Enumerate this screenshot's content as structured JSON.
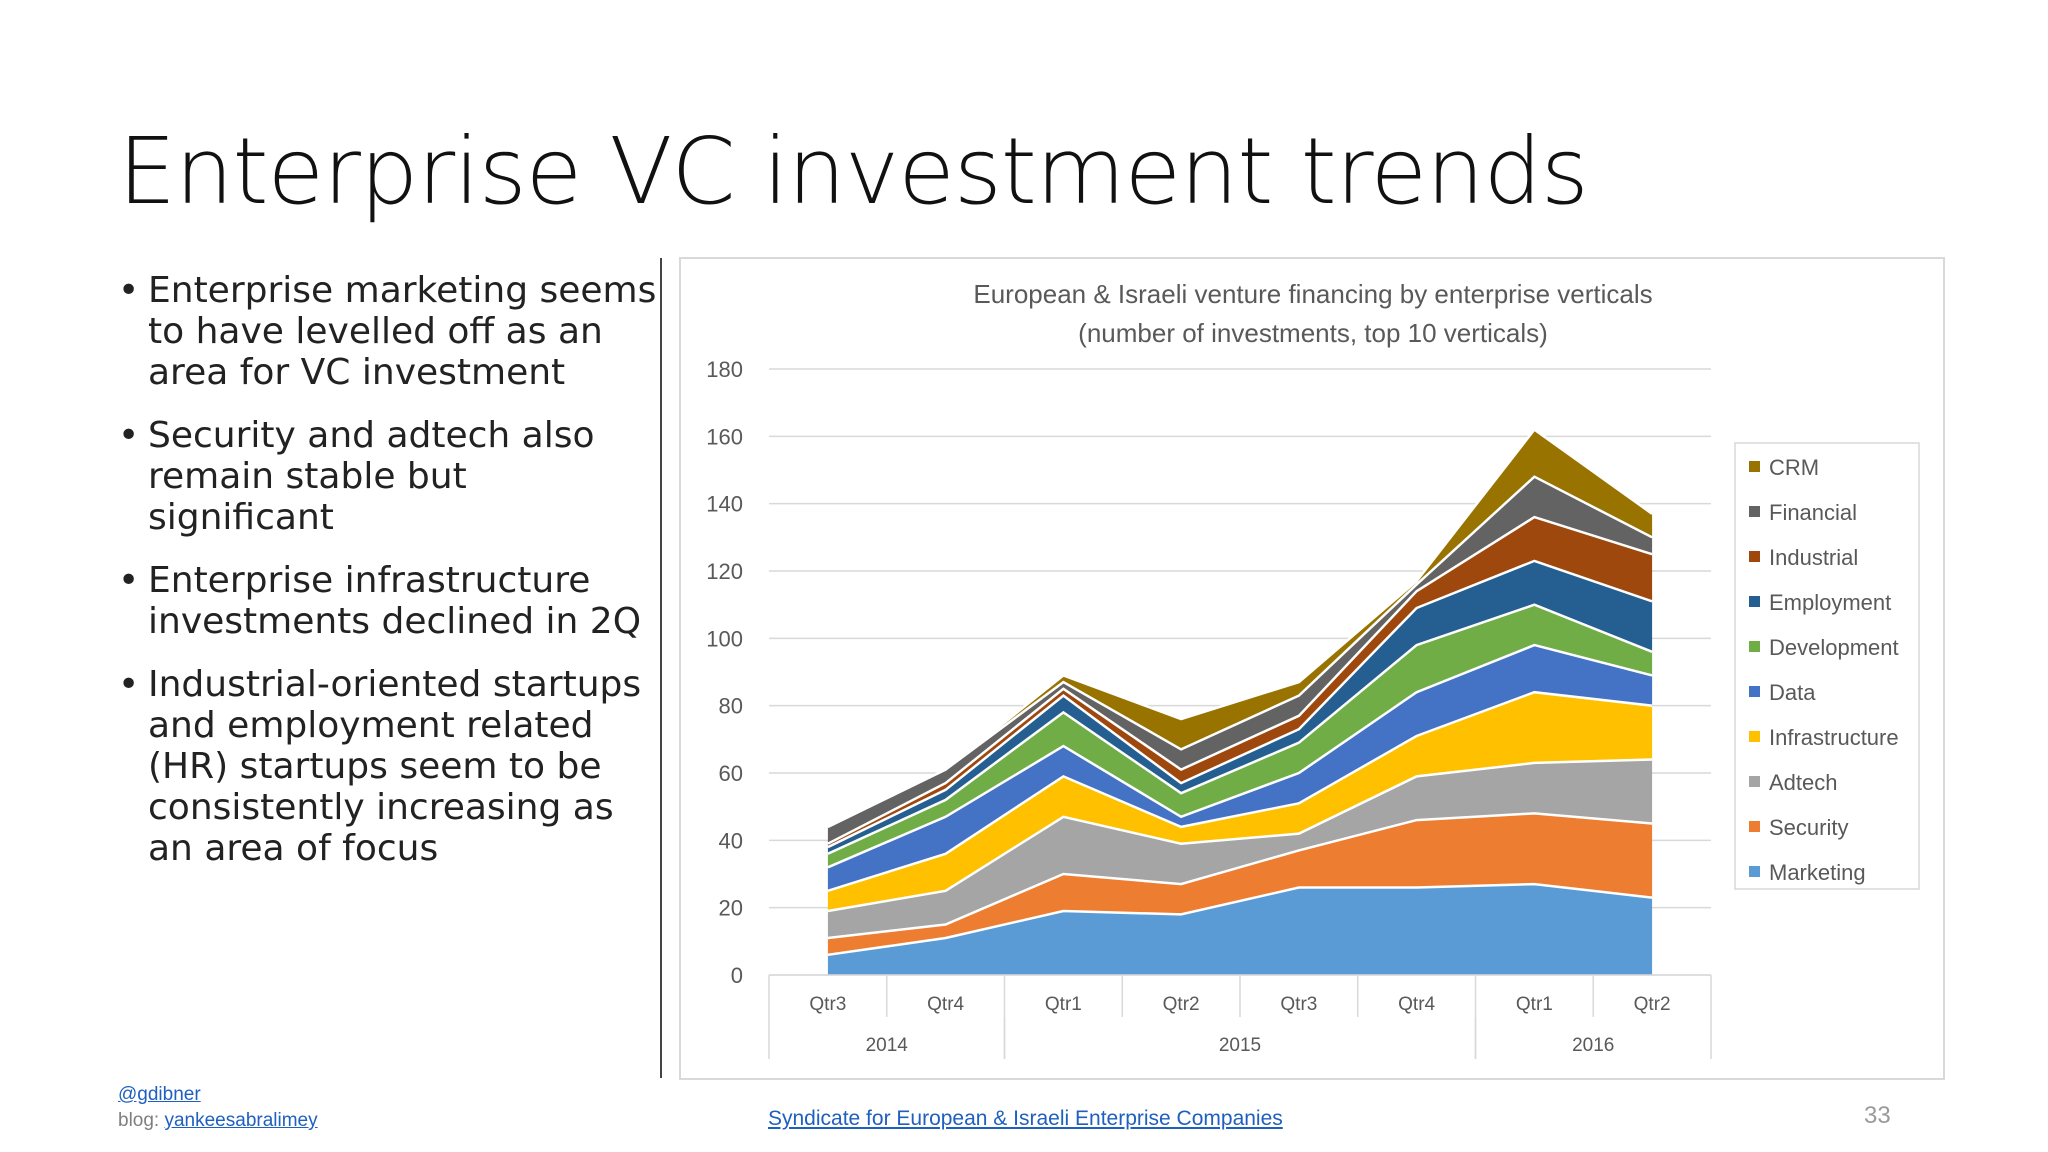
{
  "slide": {
    "title": "Enterprise VC investment trends",
    "bullets": [
      "Enterprise marketing seems to have levelled off as an area for VC investment",
      "Security and adtech also remain stable but significant",
      "Enterprise infrastructure investments declined in 2Q",
      "Industrial-oriented startups and employment related (HR) startups seem to be consistently increasing as an area of focus"
    ],
    "footer": {
      "handle": "@gdibner",
      "blog_label": "blog:",
      "blog_link": "yankeesabralimey",
      "source": "Syndicate for European & Israeli Enterprise Companies",
      "page_number": "33"
    }
  },
  "chart_data": {
    "type": "area",
    "stacked": true,
    "title": "European & Israeli venture financing by enterprise verticals",
    "subtitle": "(number of investments, top 10 verticals)",
    "categories": [
      "Qtr3",
      "Qtr4",
      "Qtr1",
      "Qtr2",
      "Qtr3",
      "Qtr4",
      "Qtr1",
      "Qtr2"
    ],
    "year_groups": [
      {
        "label": "2014",
        "count": 2
      },
      {
        "label": "2015",
        "count": 4
      },
      {
        "label": "2016",
        "count": 2
      }
    ],
    "ylim": [
      0,
      180
    ],
    "yticks": [
      0,
      20,
      40,
      60,
      80,
      100,
      120,
      140,
      160,
      180
    ],
    "grid": true,
    "legend_position": "right",
    "series": [
      {
        "name": "Marketing",
        "color": "#5b9bd5",
        "values": [
          6,
          11,
          19,
          18,
          26,
          26,
          27,
          23
        ]
      },
      {
        "name": "Security",
        "color": "#ed7d31",
        "values": [
          5,
          4,
          11,
          9,
          11,
          20,
          21,
          22
        ]
      },
      {
        "name": "Adtech",
        "color": "#a5a5a5",
        "values": [
          8,
          10,
          17,
          12,
          5,
          13,
          15,
          19
        ]
      },
      {
        "name": "Infrastructure",
        "color": "#ffc000",
        "values": [
          6,
          11,
          12,
          5,
          9,
          12,
          21,
          16
        ]
      },
      {
        "name": "Data",
        "color": "#4472c4",
        "values": [
          7,
          11,
          9,
          3,
          9,
          13,
          14,
          9
        ]
      },
      {
        "name": "Development",
        "color": "#70ad47",
        "values": [
          4,
          5,
          10,
          7,
          9,
          14,
          12,
          7
        ]
      },
      {
        "name": "Employment",
        "color": "#255e91",
        "values": [
          2,
          3,
          5,
          3,
          4,
          11,
          13,
          15
        ]
      },
      {
        "name": "Industrial",
        "color": "#9e480e",
        "values": [
          1,
          2,
          2,
          4,
          4,
          5,
          13,
          14
        ]
      },
      {
        "name": "Financial",
        "color": "#636363",
        "values": [
          5,
          4,
          2,
          6,
          6,
          2,
          12,
          5
        ]
      },
      {
        "name": "CRM",
        "color": "#997300",
        "values": [
          0,
          0,
          2,
          9,
          4,
          1,
          14,
          7
        ]
      }
    ]
  }
}
